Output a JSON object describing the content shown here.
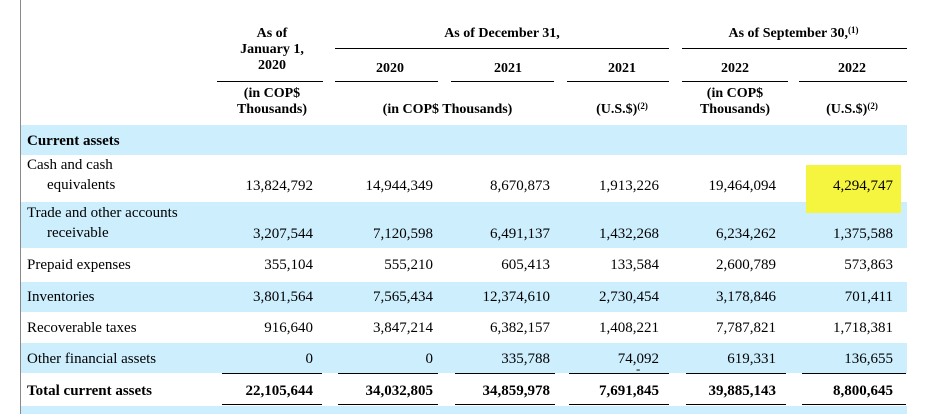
{
  "headers": {
    "jan": [
      "As of",
      "January 1,",
      "2020"
    ],
    "dec_group": "As of December 31,",
    "sep_group": "As of September 30,",
    "sep_note": "(1)",
    "years": [
      "2020",
      "2021",
      "2021",
      "2022",
      "2022"
    ],
    "unit_jan": [
      "(in COP$",
      "Thousands)"
    ],
    "unit_dec": "(in COP$ Thousands)",
    "unit_usd": "(U.S.$)",
    "unit_usd_note": "(2)",
    "unit_sep": [
      "(in COP$",
      "Thousands)"
    ]
  },
  "section": "Current assets",
  "rows": [
    {
      "label": [
        "Cash and cash",
        "equivalents"
      ],
      "values": [
        "13,824,792",
        "14,944,349",
        "8,670,873",
        "1,913,226",
        "19,464,094",
        "4,294,747"
      ]
    },
    {
      "label": [
        "Trade and other accounts",
        "receivable"
      ],
      "values": [
        "3,207,544",
        "7,120,598",
        "6,491,137",
        "1,432,268",
        "6,234,262",
        "1,375,588"
      ]
    },
    {
      "label": [
        "Prepaid expenses"
      ],
      "values": [
        "355,104",
        "555,210",
        "605,413",
        "133,584",
        "2,600,789",
        "573,863"
      ]
    },
    {
      "label": [
        "Inventories"
      ],
      "values": [
        "3,801,564",
        "7,565,434",
        "12,374,610",
        "2,730,454",
        "3,178,846",
        "701,411"
      ]
    },
    {
      "label": [
        "Recoverable taxes"
      ],
      "values": [
        "916,640",
        "3,847,214",
        "6,382,157",
        "1,408,221",
        "7,787,821",
        "1,718,381"
      ]
    },
    {
      "label": [
        "Other financial assets"
      ],
      "values": [
        "0",
        "0",
        "335,788",
        "74,092",
        "619,331",
        "136,655"
      ]
    }
  ],
  "total": {
    "label": "Total current assets",
    "values": [
      "22,105,644",
      "34,032,805",
      "34,859,978",
      "7,691,845",
      "39,885,143",
      "8,800,645"
    ]
  },
  "stray_mark": "-",
  "highlight_color": "#f5f540",
  "band_color": "#cdeefd"
}
